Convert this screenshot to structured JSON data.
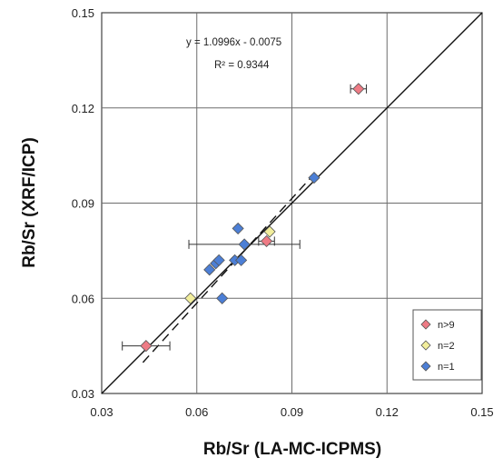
{
  "chart_data": {
    "type": "scatter",
    "title": "",
    "xlabel": "Rb/Sr (LA-MC-ICPMS)",
    "ylabel": "Rb/Sr (XRF/ICP)",
    "xlim": [
      0.03,
      0.15
    ],
    "ylim": [
      0.03,
      0.15
    ],
    "x_ticks": [
      "0.03",
      "0.06",
      "0.09",
      "0.12",
      "0.15"
    ],
    "y_ticks": [
      "0.03",
      "0.06",
      "0.09",
      "0.12",
      "0.15"
    ],
    "grid": true,
    "legend_position": "bottom-right",
    "equation": "y = 1.0996x - 0.0075",
    "r_squared": "R² = 0.9344",
    "one_to_one_line": true,
    "regression_line": {
      "slope": 1.0996,
      "intercept": -0.0075,
      "style": "dashed"
    },
    "series": [
      {
        "name": "n>9",
        "color": "#ee7b85",
        "points": [
          {
            "x": 0.044,
            "y": 0.045,
            "xerr": 0.0075
          },
          {
            "x": 0.082,
            "y": 0.078,
            "xerr": 0.0025
          },
          {
            "x": 0.111,
            "y": 0.126,
            "xerr": 0.0025
          }
        ]
      },
      {
        "name": "n=2",
        "color": "#f2ee9c",
        "points": [
          {
            "x": 0.058,
            "y": 0.06
          },
          {
            "x": 0.083,
            "y": 0.081
          }
        ]
      },
      {
        "name": "n=1",
        "color": "#4c7fd6",
        "points": [
          {
            "x": 0.064,
            "y": 0.069
          },
          {
            "x": 0.066,
            "y": 0.071
          },
          {
            "x": 0.067,
            "y": 0.072
          },
          {
            "x": 0.068,
            "y": 0.06
          },
          {
            "x": 0.072,
            "y": 0.072
          },
          {
            "x": 0.073,
            "y": 0.082
          },
          {
            "x": 0.074,
            "y": 0.072
          },
          {
            "x": 0.075,
            "y": 0.077,
            "xerr": 0.0175
          },
          {
            "x": 0.097,
            "y": 0.098
          }
        ]
      }
    ]
  }
}
